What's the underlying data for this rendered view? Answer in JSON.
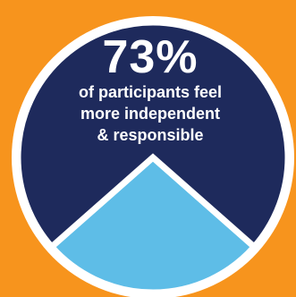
{
  "chart_data": {
    "type": "pie",
    "title": "73%",
    "subtitle_lines": [
      "of participants feel",
      "more independent",
      "& responsible"
    ],
    "slices": [
      {
        "value": 73,
        "color": "#1e2a5c"
      },
      {
        "value": 27,
        "color": "#5ebde7"
      }
    ]
  },
  "colors": {
    "background": "#f7941d",
    "ring": "#ffffff"
  }
}
